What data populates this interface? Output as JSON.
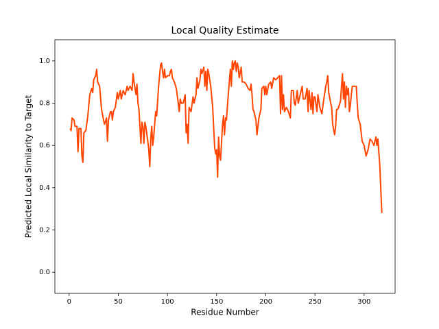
{
  "chart_data": {
    "type": "line",
    "title": "Local Quality Estimate",
    "x_label": "Residue Number",
    "y_label": "Predicted Local Similarity to Target",
    "color": "#ff4500",
    "xlim": [
      -14.5,
      331.5
    ],
    "ylim": [
      -0.1,
      1.1
    ],
    "xticks": [
      0,
      50,
      100,
      150,
      200,
      250,
      300
    ],
    "yticks": [
      {
        "value": 0,
        "label": "0.0"
      },
      0.2,
      0.4,
      0.6,
      0.8,
      {
        "value": 1,
        "label": "1.0"
      }
    ],
    "x": [
      1,
      2,
      3,
      5,
      6,
      8,
      9,
      10,
      12,
      13,
      14,
      15,
      17,
      19,
      21,
      23,
      24,
      25,
      27,
      28,
      29,
      31,
      33,
      35,
      36,
      38,
      39,
      40,
      42,
      43,
      44,
      45,
      47,
      49,
      50,
      52,
      53,
      55,
      57,
      59,
      60,
      62,
      64,
      65,
      66,
      68,
      69,
      70,
      71,
      73,
      74,
      75,
      76,
      77,
      78,
      80,
      81,
      82,
      83,
      84,
      85,
      86,
      88,
      89,
      91,
      93,
      94,
      95,
      96,
      97,
      98,
      100,
      102,
      103,
      104,
      105,
      107,
      109,
      111,
      112,
      113,
      114,
      116,
      118,
      119,
      120,
      121,
      122,
      124,
      126,
      127,
      129,
      130,
      131,
      133,
      134,
      135,
      137,
      138,
      139,
      140,
      141,
      142,
      144,
      145,
      146,
      148,
      149,
      150,
      151,
      152,
      153,
      154,
      156,
      157,
      158,
      159,
      160,
      162,
      164,
      165,
      166,
      167,
      168,
      169,
      170,
      171,
      172,
      173,
      175,
      176,
      178,
      180,
      182,
      184,
      185,
      186,
      187,
      188,
      190,
      191,
      193,
      195,
      196,
      198,
      199,
      200,
      201,
      203,
      205,
      206,
      208,
      210,
      212,
      214,
      215,
      216,
      217,
      218,
      219,
      221,
      223,
      225,
      226,
      228,
      229,
      230,
      232,
      233,
      235,
      237,
      238,
      240,
      242,
      243,
      244,
      246,
      247,
      248,
      249,
      250,
      252,
      253,
      254,
      255,
      257,
      259,
      261,
      262,
      263,
      264,
      266,
      267,
      268,
      270,
      271,
      272,
      273,
      274,
      276,
      277,
      278,
      279,
      280,
      281,
      282,
      283,
      284,
      285,
      286,
      287,
      288,
      290,
      292,
      293,
      294,
      296,
      297,
      298,
      300,
      302,
      304,
      306,
      308,
      310,
      312,
      313,
      314,
      316,
      318
    ],
    "values": [
      0.68,
      0.67,
      0.73,
      0.72,
      0.69,
      0.69,
      0.57,
      0.68,
      0.68,
      0.55,
      0.52,
      0.66,
      0.67,
      0.74,
      0.84,
      0.87,
      0.85,
      0.91,
      0.93,
      0.96,
      0.9,
      0.88,
      0.77,
      0.72,
      0.7,
      0.73,
      0.62,
      0.72,
      0.76,
      0.76,
      0.72,
      0.76,
      0.78,
      0.85,
      0.82,
      0.86,
      0.82,
      0.86,
      0.84,
      0.88,
      0.86,
      0.88,
      0.86,
      0.94,
      0.9,
      0.84,
      0.89,
      0.8,
      0.77,
      0.61,
      0.71,
      0.69,
      0.61,
      0.71,
      0.69,
      0.62,
      0.58,
      0.5,
      0.63,
      0.69,
      0.6,
      0.64,
      0.76,
      0.74,
      0.88,
      0.98,
      0.99,
      0.95,
      0.92,
      0.96,
      0.92,
      0.93,
      0.93,
      0.95,
      0.96,
      0.92,
      0.9,
      0.87,
      0.8,
      0.76,
      0.82,
      0.8,
      0.8,
      0.84,
      0.66,
      0.7,
      0.61,
      0.78,
      0.76,
      0.83,
      0.8,
      0.84,
      0.92,
      0.87,
      0.91,
      0.96,
      0.94,
      0.97,
      0.88,
      0.95,
      0.86,
      0.96,
      0.94,
      0.88,
      0.83,
      0.78,
      0.59,
      0.56,
      0.58,
      0.45,
      0.64,
      0.55,
      0.53,
      0.7,
      0.74,
      0.65,
      0.73,
      0.72,
      0.85,
      0.96,
      0.88,
      1.0,
      0.96,
      0.99,
      1.0,
      0.95,
      0.99,
      0.97,
      0.92,
      0.97,
      0.9,
      0.9,
      0.89,
      0.87,
      0.86,
      0.89,
      0.84,
      0.77,
      0.76,
      0.72,
      0.65,
      0.73,
      0.77,
      0.87,
      0.88,
      0.84,
      0.88,
      0.84,
      0.89,
      0.9,
      0.87,
      0.92,
      0.91,
      0.92,
      0.93,
      0.75,
      0.93,
      0.77,
      0.84,
      0.76,
      0.78,
      0.76,
      0.73,
      0.86,
      0.86,
      0.8,
      0.79,
      0.86,
      0.8,
      0.84,
      0.88,
      0.82,
      0.82,
      0.87,
      0.76,
      0.86,
      0.77,
      0.85,
      0.75,
      0.83,
      0.83,
      0.76,
      0.84,
      0.81,
      0.78,
      0.75,
      0.82,
      0.88,
      0.9,
      0.93,
      0.85,
      0.8,
      0.78,
      0.7,
      0.65,
      0.69,
      0.77,
      0.77,
      0.78,
      0.81,
      0.88,
      0.94,
      0.82,
      0.9,
      0.78,
      0.88,
      0.84,
      0.87,
      0.76,
      0.79,
      0.84,
      0.88,
      0.88,
      0.88,
      0.8,
      0.73,
      0.7,
      0.66,
      0.62,
      0.6,
      0.55,
      0.58,
      0.63,
      0.62,
      0.6,
      0.64,
      0.6,
      0.63,
      0.5,
      0.28
    ]
  }
}
